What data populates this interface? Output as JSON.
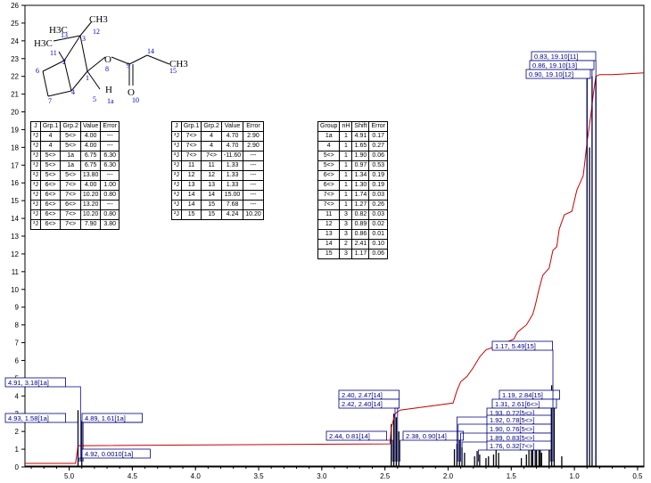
{
  "chart_data": {
    "type": "line",
    "title": "",
    "xlabel": "",
    "ylabel": "",
    "xlim": [
      5.35,
      0.45
    ],
    "ylim": [
      0,
      26
    ],
    "x_ticks": [
      "5.0",
      "4.5",
      "4.0",
      "3.5",
      "3.0",
      "2.5",
      "2.0",
      "1.5",
      "1.0",
      "0.5"
    ],
    "y_ticks": [
      "0",
      "1",
      "2",
      "3",
      "4",
      "5",
      "6",
      "7",
      "8",
      "9",
      "10",
      "11",
      "12",
      "13",
      "14",
      "15",
      "16",
      "17",
      "18",
      "19",
      "20",
      "21",
      "22",
      "23",
      "24",
      "25",
      "26"
    ],
    "integral_curve": [
      {
        "x": 5.35,
        "y": 0.2
      },
      {
        "x": 4.95,
        "y": 0.2
      },
      {
        "x": 4.93,
        "y": 1.2
      },
      {
        "x": 4.9,
        "y": 1.2
      },
      {
        "x": 2.46,
        "y": 1.3
      },
      {
        "x": 2.45,
        "y": 2.2
      },
      {
        "x": 2.42,
        "y": 3.0
      },
      {
        "x": 2.38,
        "y": 3.2
      },
      {
        "x": 1.96,
        "y": 3.6
      },
      {
        "x": 1.93,
        "y": 4.3
      },
      {
        "x": 1.9,
        "y": 4.8
      },
      {
        "x": 1.85,
        "y": 5.1
      },
      {
        "x": 1.8,
        "y": 5.6
      },
      {
        "x": 1.75,
        "y": 6.2
      },
      {
        "x": 1.7,
        "y": 6.6
      },
      {
        "x": 1.62,
        "y": 6.8
      },
      {
        "x": 1.55,
        "y": 7.0
      },
      {
        "x": 1.48,
        "y": 7.2
      },
      {
        "x": 1.45,
        "y": 7.6
      },
      {
        "x": 1.38,
        "y": 8.0
      },
      {
        "x": 1.33,
        "y": 8.6
      },
      {
        "x": 1.31,
        "y": 9.1
      },
      {
        "x": 1.28,
        "y": 10.0
      },
      {
        "x": 1.25,
        "y": 10.8
      },
      {
        "x": 1.2,
        "y": 11.2
      },
      {
        "x": 1.17,
        "y": 12.2
      },
      {
        "x": 1.14,
        "y": 12.4
      },
      {
        "x": 1.12,
        "y": 13.4
      },
      {
        "x": 1.08,
        "y": 14.2
      },
      {
        "x": 1.02,
        "y": 14.4
      },
      {
        "x": 0.98,
        "y": 15.6
      },
      {
        "x": 0.93,
        "y": 16.4
      },
      {
        "x": 0.9,
        "y": 18.3
      },
      {
        "x": 0.87,
        "y": 19.8
      },
      {
        "x": 0.85,
        "y": 21.0
      },
      {
        "x": 0.83,
        "y": 22.0
      },
      {
        "x": 0.8,
        "y": 22.1
      },
      {
        "x": 0.7,
        "y": 22.1
      },
      {
        "x": 0.45,
        "y": 22.2
      }
    ],
    "peaks": [
      {
        "x": 4.93,
        "h": 3.2
      },
      {
        "x": 4.9,
        "h": 2.6
      },
      {
        "x": 2.45,
        "h": 2.4
      },
      {
        "x": 2.43,
        "h": 3.0
      },
      {
        "x": 2.41,
        "h": 2.8
      },
      {
        "x": 2.39,
        "h": 2.0
      },
      {
        "x": 1.95,
        "h": 1.0
      },
      {
        "x": 1.93,
        "h": 1.3
      },
      {
        "x": 1.91,
        "h": 1.5
      },
      {
        "x": 1.89,
        "h": 1.1
      },
      {
        "x": 1.87,
        "h": 0.8
      },
      {
        "x": 1.79,
        "h": 0.6
      },
      {
        "x": 1.77,
        "h": 0.9
      },
      {
        "x": 1.75,
        "h": 0.7
      },
      {
        "x": 1.7,
        "h": 0.5
      },
      {
        "x": 1.68,
        "h": 0.6
      },
      {
        "x": 1.64,
        "h": 0.7
      },
      {
        "x": 1.62,
        "h": 1.0
      },
      {
        "x": 1.6,
        "h": 0.8
      },
      {
        "x": 1.42,
        "h": 0.5
      },
      {
        "x": 1.38,
        "h": 0.7
      },
      {
        "x": 1.36,
        "h": 1.0
      },
      {
        "x": 1.34,
        "h": 1.3
      },
      {
        "x": 1.33,
        "h": 1.6
      },
      {
        "x": 1.31,
        "h": 1.8
      },
      {
        "x": 1.3,
        "h": 1.5
      },
      {
        "x": 1.28,
        "h": 1.2
      },
      {
        "x": 1.27,
        "h": 1.0
      },
      {
        "x": 1.26,
        "h": 0.8
      },
      {
        "x": 1.2,
        "h": 3.1
      },
      {
        "x": 1.18,
        "h": 4.6
      },
      {
        "x": 1.16,
        "h": 3.6
      },
      {
        "x": 1.1,
        "h": 0.6
      },
      {
        "x": 0.9,
        "h": 22.0
      },
      {
        "x": 0.88,
        "h": 18.0
      },
      {
        "x": 0.86,
        "h": 22.0
      },
      {
        "x": 0.83,
        "h": 22.0
      }
    ],
    "annotations": [
      {
        "text": "4.91, 3.18[1a]",
        "x": 4.91
      },
      {
        "text": "4.93, 1.58[1a]",
        "x": 4.93
      },
      {
        "text": "4.89, 1.61[1a]",
        "x": 4.89
      },
      {
        "text": "4.92, 0.0010[1a]",
        "x": 4.92
      },
      {
        "text": "2.40, 2.47[14]",
        "x": 2.4
      },
      {
        "text": "2.42, 2.40[14]",
        "x": 2.42
      },
      {
        "text": "2.44, 0.81[14]",
        "x": 2.44
      },
      {
        "text": "2.38, 0.90[14]",
        "x": 2.38
      },
      {
        "text": "1.19, 2.84[15]",
        "x": 1.19
      },
      {
        "text": "1.31, 2.61[6<>]",
        "x": 1.31
      },
      {
        "text": "1.93, 0.72[5<>]",
        "x": 1.93
      },
      {
        "text": "1.92, 0.78[5<>]",
        "x": 1.92
      },
      {
        "text": "1.90, 0.76[5<>]",
        "x": 1.9
      },
      {
        "text": "1.89, 0.83[5<>]",
        "x": 1.89
      },
      {
        "text": "1.76, 0.32[7<>]",
        "x": 1.76
      },
      {
        "text": "1.17, 5.49[15]",
        "x": 1.17
      },
      {
        "text": "0.83, 19.10[11]",
        "x": 0.83
      },
      {
        "text": "0.86, 19.10[13]",
        "x": 0.86
      },
      {
        "text": "0.90, 19.10[12]",
        "x": 0.9
      }
    ]
  },
  "molecule": {
    "atoms": [
      "H3C",
      "13",
      "CH3",
      "12",
      "H3C",
      "11",
      "3",
      "2",
      "6",
      "7",
      "4",
      "5",
      "1",
      "H",
      "1a",
      "O",
      "8",
      "9",
      "10",
      "O",
      "14",
      "CH3",
      "15"
    ]
  },
  "table_j1": {
    "headers": [
      "J",
      "Grp.1",
      "Grp.2",
      "Value",
      "Error"
    ],
    "rows": [
      [
        "³J",
        "4",
        "5<>",
        "4.00",
        "---"
      ],
      [
        "³J",
        "4",
        "5<>",
        "4.00",
        "---"
      ],
      [
        "³J",
        "5<>",
        "1a",
        "6.75",
        "6.30"
      ],
      [
        "³J",
        "5<>",
        "1a",
        "6.75",
        "6.30"
      ],
      [
        "²J",
        "5<>",
        "5<>",
        "13.80",
        "---"
      ],
      [
        "³J",
        "6<>",
        "7<>",
        "4.00",
        "1.00"
      ],
      [
        "³J",
        "6<>",
        "7<>",
        "10.20",
        "0.80"
      ],
      [
        "²J",
        "6<>",
        "6<>",
        "13.20",
        "---"
      ],
      [
        "³J",
        "6<>",
        "7<>",
        "10.20",
        "0.80"
      ],
      [
        "³J",
        "6<>",
        "7<>",
        "7.90",
        "3.80"
      ]
    ]
  },
  "table_j2": {
    "headers": [
      "J",
      "Grp.1",
      "Grp.2",
      "Value",
      "Error"
    ],
    "rows": [
      [
        "³J",
        "7<>",
        "4",
        "4.70",
        "2.90"
      ],
      [
        "³J",
        "7<>",
        "4",
        "4.70",
        "2.90"
      ],
      [
        "²J",
        "7<>",
        "7<>",
        "-11.60",
        "---"
      ],
      [
        "²J",
        "11",
        "11",
        "1.33",
        "---"
      ],
      [
        "²J",
        "12",
        "12",
        "1.33",
        "---"
      ],
      [
        "²J",
        "13",
        "13",
        "1.33",
        "---"
      ],
      [
        "²J",
        "14",
        "14",
        "15.00",
        "---"
      ],
      [
        "³J",
        "14",
        "15",
        "7.68",
        "---"
      ],
      [
        "²J",
        "15",
        "15",
        "4.24",
        "10.20"
      ]
    ]
  },
  "table_shift": {
    "headers": [
      "Group",
      "nH",
      "Shift",
      "Error"
    ],
    "rows": [
      [
        "1a",
        "1",
        "4.91",
        "0.17"
      ],
      [
        "4",
        "1",
        "1.65",
        "0.27"
      ],
      [
        "5<>",
        "1",
        "1.90",
        "0.06"
      ],
      [
        "5<>",
        "1",
        "0.97",
        "0.53"
      ],
      [
        "6<>",
        "1",
        "1.34",
        "0.19"
      ],
      [
        "6<>",
        "1",
        "1.30",
        "0.19"
      ],
      [
        "7<>",
        "1",
        "1.74",
        "0.03"
      ],
      [
        "7<>",
        "1",
        "1.27",
        "0.26"
      ],
      [
        "11",
        "3",
        "0.82",
        "0.03"
      ],
      [
        "12",
        "3",
        "0.89",
        "0.02"
      ],
      [
        "13",
        "3",
        "0.86",
        "0.01"
      ],
      [
        "14",
        "2",
        "2.41",
        "0.10"
      ],
      [
        "15",
        "3",
        "1.17",
        "0.06"
      ]
    ]
  },
  "colors": {
    "spectrum": "#000000",
    "integral": "#cc0000",
    "annotation_box": "#000080",
    "atom_label": "#0000cc"
  }
}
